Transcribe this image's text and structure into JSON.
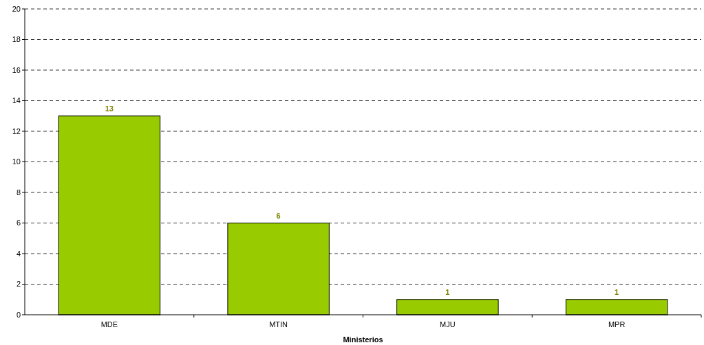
{
  "chart_data": {
    "type": "bar",
    "xlabel": "Ministerios",
    "categories": [
      "MDE",
      "MTIN",
      "MJU",
      "MPR"
    ],
    "values": [
      13,
      6,
      1,
      1
    ],
    "color": "#99cc00",
    "ylim": [
      0,
      20
    ],
    "yticks": [
      0,
      2,
      4,
      6,
      8,
      10,
      12,
      14,
      16,
      18,
      20
    ],
    "grid": "y",
    "data_labels": true
  }
}
